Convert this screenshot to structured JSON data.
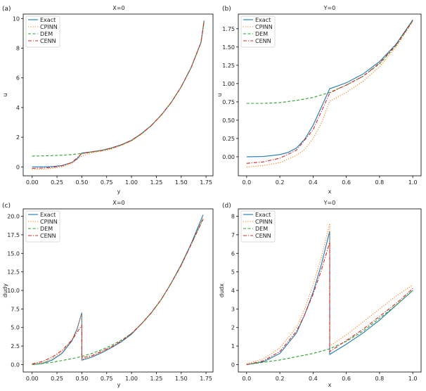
{
  "colors": {
    "Exact": "#1f77b4",
    "CPINN": "#ff7f0e",
    "DEM": "#2ca02c",
    "CENN": "#d62728"
  },
  "chart_data": [
    {
      "type": "line",
      "panel": "(a)",
      "title": "X=0",
      "xlabel": "y",
      "ylabel": "u",
      "xlim": [
        -0.09,
        1.82
      ],
      "ylim": [
        -0.6,
        10.3
      ],
      "xticks": [
        0.0,
        0.25,
        0.5,
        0.75,
        1.0,
        1.25,
        1.5,
        1.75
      ],
      "xtick_labels": [
        "0.00",
        "0.25",
        "0.50",
        "0.75",
        "1.00",
        "1.25",
        "1.50",
        "1.75"
      ],
      "yticks": [
        0,
        2,
        4,
        6,
        8,
        10
      ],
      "ytick_labels": [
        "0",
        "2",
        "4",
        "6",
        "8",
        "10"
      ],
      "legend": [
        "Exact",
        "CPINN",
        "DEM",
        "CENN"
      ],
      "series": [
        {
          "name": "Exact",
          "style": "solid",
          "x": [
            0,
            0.1,
            0.2,
            0.3,
            0.4,
            0.45,
            0.5,
            0.55,
            0.6,
            0.7,
            0.8,
            0.9,
            1.0,
            1.1,
            1.2,
            1.3,
            1.4,
            1.5,
            1.6,
            1.7,
            1.73
          ],
          "y": [
            0,
            0.003,
            0.02,
            0.09,
            0.3,
            0.52,
            0.93,
            0.98,
            1.02,
            1.12,
            1.28,
            1.5,
            1.8,
            2.25,
            2.8,
            3.5,
            4.35,
            5.4,
            6.7,
            8.4,
            9.85
          ]
        },
        {
          "name": "CPINN",
          "style": "dotted",
          "x": [
            0,
            0.1,
            0.2,
            0.3,
            0.4,
            0.5,
            0.55,
            0.6,
            0.7,
            0.8,
            0.9,
            1.0,
            1.1,
            1.2,
            1.3,
            1.4,
            1.5,
            1.6,
            1.7,
            1.73
          ],
          "y": [
            -0.17,
            -0.15,
            -0.1,
            0.0,
            0.25,
            0.75,
            0.85,
            0.95,
            1.06,
            1.2,
            1.45,
            1.75,
            2.2,
            2.78,
            3.48,
            4.33,
            5.38,
            6.68,
            8.38,
            9.83
          ]
        },
        {
          "name": "DEM",
          "style": "dashed",
          "x": [
            0,
            0.1,
            0.2,
            0.3,
            0.4,
            0.5,
            0.55,
            0.6,
            0.7,
            0.8,
            0.9,
            1.0,
            1.1,
            1.2,
            1.3,
            1.4,
            1.5,
            1.6,
            1.7,
            1.73
          ],
          "y": [
            0.73,
            0.74,
            0.76,
            0.79,
            0.83,
            0.9,
            0.95,
            1.0,
            1.1,
            1.26,
            1.48,
            1.78,
            2.23,
            2.79,
            3.5,
            4.35,
            5.4,
            6.7,
            8.4,
            9.85
          ]
        },
        {
          "name": "CENN",
          "style": "dashdot",
          "x": [
            0,
            0.1,
            0.2,
            0.3,
            0.4,
            0.5,
            0.55,
            0.6,
            0.7,
            0.8,
            0.9,
            1.0,
            1.1,
            1.2,
            1.3,
            1.4,
            1.5,
            1.6,
            1.7,
            1.73
          ],
          "y": [
            -0.1,
            -0.08,
            -0.03,
            0.07,
            0.3,
            0.9,
            0.96,
            1.01,
            1.11,
            1.27,
            1.49,
            1.79,
            2.24,
            2.8,
            3.5,
            4.35,
            5.4,
            6.7,
            8.4,
            9.85
          ]
        }
      ]
    },
    {
      "type": "line",
      "panel": "(b)",
      "title": "Y=0",
      "xlabel": "x",
      "ylabel": "u",
      "xlim": [
        -0.05,
        1.05
      ],
      "ylim": [
        -0.26,
        1.95
      ],
      "xticks": [
        0,
        0.2,
        0.4,
        0.6,
        0.8,
        1.0
      ],
      "xtick_labels": [
        "0.0",
        "0.2",
        "0.4",
        "0.6",
        "0.8",
        "1.0"
      ],
      "yticks": [
        0,
        0.25,
        0.5,
        0.75,
        1.0,
        1.25,
        1.5,
        1.75
      ],
      "ytick_labels": [
        "0.00",
        "0.25",
        "0.50",
        "0.75",
        "1.00",
        "1.25",
        "1.50",
        "1.75"
      ],
      "legend": [
        "Exact",
        "CPINN",
        "DEM",
        "CENN"
      ],
      "series": [
        {
          "name": "Exact",
          "style": "solid",
          "x": [
            0,
            0.1,
            0.2,
            0.25,
            0.3,
            0.35,
            0.4,
            0.45,
            0.5,
            0.55,
            0.6,
            0.7,
            0.8,
            0.9,
            1.0
          ],
          "y": [
            0,
            0.003,
            0.03,
            0.06,
            0.12,
            0.24,
            0.43,
            0.68,
            0.93,
            0.97,
            1.01,
            1.13,
            1.3,
            1.54,
            1.87
          ]
        },
        {
          "name": "CPINN",
          "style": "dotted",
          "x": [
            0,
            0.1,
            0.2,
            0.3,
            0.35,
            0.4,
            0.45,
            0.5,
            0.55,
            0.6,
            0.7,
            0.8,
            0.9,
            1.0
          ],
          "y": [
            -0.14,
            -0.12,
            -0.08,
            0.02,
            0.1,
            0.25,
            0.46,
            0.76,
            0.82,
            0.88,
            1.03,
            1.23,
            1.5,
            1.85
          ]
        },
        {
          "name": "DEM",
          "style": "dashed",
          "x": [
            0,
            0.1,
            0.2,
            0.3,
            0.4,
            0.5,
            0.55,
            0.6,
            0.7,
            0.8,
            0.9,
            1.0
          ],
          "y": [
            0.73,
            0.73,
            0.74,
            0.77,
            0.81,
            0.88,
            0.93,
            0.98,
            1.1,
            1.27,
            1.52,
            1.86
          ]
        },
        {
          "name": "CENN",
          "style": "dashdot",
          "x": [
            0,
            0.1,
            0.2,
            0.3,
            0.4,
            0.45,
            0.5,
            0.55,
            0.6,
            0.7,
            0.8,
            0.9,
            1.0
          ],
          "y": [
            -0.09,
            -0.07,
            -0.02,
            0.09,
            0.37,
            0.62,
            0.87,
            0.93,
            0.98,
            1.1,
            1.28,
            1.53,
            1.86
          ]
        }
      ]
    },
    {
      "type": "line",
      "panel": "(c)",
      "title": "X=0",
      "xlabel": "y",
      "ylabel": "dudy",
      "xlim": [
        -0.09,
        1.82
      ],
      "ylim": [
        -1.0,
        21.0
      ],
      "xticks": [
        0.0,
        0.25,
        0.5,
        0.75,
        1.0,
        1.25,
        1.5,
        1.75
      ],
      "xtick_labels": [
        "0.00",
        "0.25",
        "0.50",
        "0.75",
        "1.00",
        "1.25",
        "1.50",
        "1.75"
      ],
      "yticks": [
        0,
        2.5,
        5,
        7.5,
        10,
        12.5,
        15,
        17.5,
        20
      ],
      "ytick_labels": [
        "0.0",
        "2.5",
        "5.0",
        "7.5",
        "10.0",
        "12.5",
        "15.0",
        "17.5",
        "20.0"
      ],
      "legend": [
        "Exact",
        "CPINN",
        "DEM",
        "CENN"
      ],
      "series": [
        {
          "name": "Exact",
          "style": "solid",
          "x": [
            0,
            0.1,
            0.2,
            0.3,
            0.4,
            0.45,
            0.5,
            0.5,
            0.6,
            0.7,
            0.8,
            0.9,
            1.0,
            1.1,
            1.2,
            1.3,
            1.4,
            1.5,
            1.6,
            1.72
          ],
          "y": [
            0,
            0.15,
            0.6,
            1.5,
            3.2,
            4.7,
            7.0,
            0.6,
            1.0,
            1.6,
            2.3,
            3.1,
            4.1,
            5.5,
            7.0,
            8.8,
            11.0,
            13.5,
            16.3,
            20.2
          ]
        },
        {
          "name": "CPINN",
          "style": "dotted",
          "x": [
            0,
            0.1,
            0.2,
            0.3,
            0.4,
            0.45,
            0.5,
            0.5,
            0.6,
            0.7,
            0.8,
            0.9,
            1.0,
            1.1,
            1.2,
            1.3,
            1.4,
            1.5,
            1.6,
            1.72
          ],
          "y": [
            0.05,
            0.25,
            0.75,
            1.7,
            3.4,
            4.8,
            6.9,
            0.7,
            1.1,
            1.7,
            2.4,
            3.2,
            4.2,
            5.5,
            7.0,
            8.8,
            11.0,
            13.4,
            16.2,
            19.8
          ]
        },
        {
          "name": "DEM",
          "style": "dashed",
          "x": [
            0,
            0.2,
            0.4,
            0.5,
            0.6,
            0.7,
            0.8,
            0.9,
            1.0,
            1.1,
            1.2,
            1.3,
            1.4,
            1.5,
            1.6,
            1.72
          ],
          "y": [
            0,
            0.3,
            0.8,
            1.1,
            1.5,
            2.0,
            2.6,
            3.3,
            4.2,
            5.5,
            7.0,
            8.8,
            11.0,
            13.4,
            16.2,
            19.7
          ]
        },
        {
          "name": "CENN",
          "style": "dashdot",
          "x": [
            0,
            0.1,
            0.2,
            0.3,
            0.4,
            0.45,
            0.5,
            0.5,
            0.6,
            0.7,
            0.8,
            0.9,
            1.0,
            1.1,
            1.2,
            1.3,
            1.4,
            1.5,
            1.6,
            1.72
          ],
          "y": [
            0.1,
            0.4,
            1.0,
            1.9,
            3.3,
            4.3,
            5.3,
            0.9,
            1.2,
            1.8,
            2.4,
            3.2,
            4.2,
            5.5,
            7.0,
            8.8,
            11.0,
            13.4,
            16.2,
            19.6
          ]
        }
      ]
    },
    {
      "type": "line",
      "panel": "(d)",
      "title": "Y=0",
      "xlabel": "x",
      "ylabel": "dudx",
      "xlim": [
        -0.05,
        1.05
      ],
      "ylim": [
        -0.4,
        8.4
      ],
      "xticks": [
        0,
        0.2,
        0.4,
        0.6,
        0.8,
        1.0
      ],
      "xtick_labels": [
        "0.0",
        "0.2",
        "0.4",
        "0.6",
        "0.8",
        "1.0"
      ],
      "yticks": [
        0,
        1,
        2,
        3,
        4,
        5,
        6,
        7,
        8
      ],
      "ytick_labels": [
        "0",
        "1",
        "2",
        "3",
        "4",
        "5",
        "6",
        "7",
        "8"
      ],
      "legend": [
        "Exact",
        "CPINN",
        "DEM",
        "CENN"
      ],
      "series": [
        {
          "name": "Exact",
          "style": "solid",
          "x": [
            0,
            0.1,
            0.2,
            0.3,
            0.35,
            0.4,
            0.45,
            0.5,
            0.5,
            0.6,
            0.7,
            0.8,
            0.9,
            1.0
          ],
          "y": [
            0,
            0.15,
            0.6,
            1.7,
            2.7,
            3.9,
            5.4,
            7.2,
            0.55,
            1.1,
            1.7,
            2.4,
            3.2,
            4.0
          ]
        },
        {
          "name": "CPINN",
          "style": "dotted",
          "x": [
            0,
            0.1,
            0.2,
            0.3,
            0.35,
            0.4,
            0.45,
            0.5,
            0.5,
            0.6,
            0.7,
            0.8,
            0.9,
            1.0
          ],
          "y": [
            0.05,
            0.3,
            0.9,
            2.0,
            3.0,
            4.3,
            5.8,
            7.6,
            1.0,
            1.6,
            2.3,
            3.0,
            3.7,
            4.3
          ]
        },
        {
          "name": "DEM",
          "style": "dashed",
          "x": [
            0,
            0.2,
            0.4,
            0.5,
            0.6,
            0.7,
            0.8,
            0.9,
            1.0
          ],
          "y": [
            0,
            0.25,
            0.6,
            0.85,
            1.25,
            1.8,
            2.5,
            3.2,
            4.0
          ]
        },
        {
          "name": "CENN",
          "style": "dashdot",
          "x": [
            0,
            0.1,
            0.2,
            0.3,
            0.35,
            0.4,
            0.45,
            0.5,
            0.5,
            0.6,
            0.7,
            0.8,
            0.9,
            1.0
          ],
          "y": [
            0,
            0.2,
            0.7,
            1.8,
            2.7,
            3.8,
            5.1,
            6.6,
            0.7,
            1.3,
            1.9,
            2.6,
            3.3,
            4.1
          ]
        }
      ]
    }
  ]
}
